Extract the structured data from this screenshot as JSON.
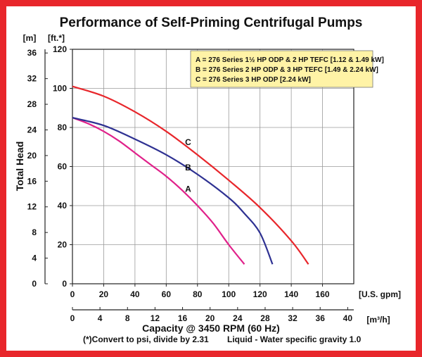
{
  "chart_data": {
    "type": "line",
    "title": "Performance of Self-Priming Centrifugal Pumps",
    "ylabel": "Total Head",
    "xlabel": "Capacity @ 3450 RPM (60 Hz)",
    "x_unit": "[U.S. gpm]",
    "x2_unit": "[m³/h]",
    "y_unit": "[ft.*]",
    "y2_unit": "[m]",
    "xlim": [
      0,
      180
    ],
    "ylim": [
      0,
      120
    ],
    "x_ticks": [
      0,
      20,
      40,
      60,
      80,
      100,
      120,
      140,
      160
    ],
    "y_ticks": [
      0,
      20,
      40,
      60,
      80,
      100,
      120
    ],
    "x2_ticks": [
      "0",
      "4",
      "8",
      "12",
      "16",
      "20",
      "24",
      "28",
      "32",
      "36",
      "40"
    ],
    "x2_tick_gpm": [
      0,
      17.61,
      35.22,
      52.83,
      70.45,
      88.06,
      105.67,
      123.28,
      140.89,
      158.5,
      176.11
    ],
    "y2_ticks": [
      "0",
      "4",
      "8",
      "12",
      "16",
      "20",
      "24",
      "28",
      "32",
      "36"
    ],
    "y2_tick_ft": [
      0,
      13.12,
      26.25,
      39.37,
      52.49,
      65.62,
      78.74,
      91.86,
      104.99,
      118.11
    ],
    "grid": true,
    "legend_position": "top-right",
    "legend": [
      "A = 276 Series 1½ HP ODP & 2 HP TEFC [1.12 & 1.49 kW]",
      "B = 276 Series 2 HP ODP & 3 HP TEFC [1.49 & 2.24 kW]",
      "C = 276 Series 3 HP ODP [2.24 kW]"
    ],
    "series": [
      {
        "name": "A",
        "color": "#e0218a",
        "x": [
          0,
          10,
          20,
          30,
          40,
          50,
          60,
          70,
          80,
          90,
          100,
          110
        ],
        "y": [
          85,
          82,
          78,
          73,
          67,
          61,
          55,
          48,
          40,
          31,
          20,
          10
        ]
      },
      {
        "name": "B",
        "color": "#2e3192",
        "x": [
          0,
          20,
          40,
          60,
          80,
          100,
          110,
          120,
          128
        ],
        "y": [
          85,
          81,
          74,
          66,
          56,
          44,
          36,
          26,
          10
        ]
      },
      {
        "name": "C",
        "color": "#e8262b",
        "x": [
          0,
          20,
          40,
          60,
          80,
          100,
          120,
          140,
          151
        ],
        "y": [
          101,
          96,
          88,
          78,
          66,
          53,
          39,
          22,
          10
        ]
      }
    ],
    "curve_labels": [
      {
        "text": "C",
        "x": 74,
        "y": 71
      },
      {
        "text": "B",
        "x": 74,
        "y": 58
      },
      {
        "text": "A",
        "x": 74,
        "y": 47
      }
    ]
  },
  "footnote": {
    "left": "(*)Convert to psi, divide by 2.31",
    "right": "Liquid - Water specific gravity 1.0"
  }
}
